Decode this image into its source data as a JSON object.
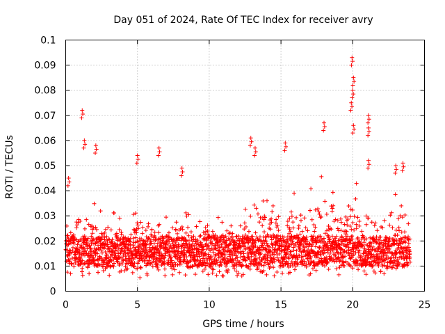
{
  "chart_data": {
    "type": "scatter",
    "title": "Day 051 of 2024, Rate Of TEC Index for receiver avry",
    "xlabel": "GPS time / hours",
    "ylabel": "ROTI / TECUs",
    "xlim": [
      0,
      25
    ],
    "ylim": [
      0,
      0.1
    ],
    "grid": true,
    "marker": "plus",
    "series_color": "#ff0000",
    "x_ticks": [
      "0",
      "5",
      "10",
      "15",
      "20",
      "25"
    ],
    "y_ticks": [
      "0",
      "0.01",
      "0.02",
      "0.03",
      "0.04",
      "0.05",
      "0.06",
      "0.07",
      "0.08",
      "0.09",
      "0.1"
    ],
    "series": [
      {
        "name": "ROTI",
        "envelope_x": [
          0,
          1,
          2,
          3,
          4,
          5,
          6,
          7,
          8,
          9,
          10,
          11,
          12,
          13,
          14,
          15,
          16,
          17,
          18,
          19,
          20,
          21,
          22,
          23,
          24
        ],
        "envelope_low": [
          0.007,
          0.006,
          0.006,
          0.006,
          0.006,
          0.005,
          0.006,
          0.006,
          0.006,
          0.005,
          0.006,
          0.006,
          0.006,
          0.006,
          0.006,
          0.006,
          0.006,
          0.006,
          0.006,
          0.006,
          0.006,
          0.006,
          0.006,
          0.005,
          0.006
        ],
        "envelope_typical_high": [
          0.03,
          0.04,
          0.035,
          0.033,
          0.03,
          0.033,
          0.031,
          0.03,
          0.035,
          0.03,
          0.03,
          0.03,
          0.029,
          0.036,
          0.038,
          0.033,
          0.04,
          0.041,
          0.048,
          0.04,
          0.045,
          0.041,
          0.039,
          0.04,
          0.035
        ],
        "notable_peaks": [
          {
            "x": 0.2,
            "y": 0.045
          },
          {
            "x": 1.15,
            "y": 0.072
          },
          {
            "x": 1.3,
            "y": 0.06
          },
          {
            "x": 2.1,
            "y": 0.058
          },
          {
            "x": 5.0,
            "y": 0.054
          },
          {
            "x": 6.5,
            "y": 0.057
          },
          {
            "x": 8.1,
            "y": 0.049
          },
          {
            "x": 12.9,
            "y": 0.061
          },
          {
            "x": 13.2,
            "y": 0.057
          },
          {
            "x": 15.3,
            "y": 0.059
          },
          {
            "x": 18.0,
            "y": 0.067
          },
          {
            "x": 19.95,
            "y": 0.093
          },
          {
            "x": 20.05,
            "y": 0.085
          },
          {
            "x": 20.0,
            "y": 0.08
          },
          {
            "x": 19.9,
            "y": 0.075
          },
          {
            "x": 20.05,
            "y": 0.066
          },
          {
            "x": 21.1,
            "y": 0.07
          },
          {
            "x": 21.1,
            "y": 0.065
          },
          {
            "x": 21.1,
            "y": 0.052
          },
          {
            "x": 23.0,
            "y": 0.05
          },
          {
            "x": 23.5,
            "y": 0.051
          }
        ]
      }
    ]
  }
}
